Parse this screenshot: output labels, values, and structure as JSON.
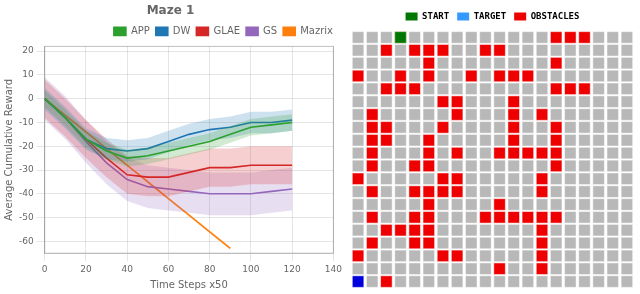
{
  "chart_data": [
    {
      "type": "line",
      "title": "Maze 1",
      "xlabel": "Time Steps x50",
      "ylabel": "Average Cumulative Reward",
      "xlim": [
        0,
        140
      ],
      "ylim": [
        -65,
        22
      ],
      "xticks": [
        0,
        20,
        40,
        60,
        80,
        100,
        120,
        140
      ],
      "yticks": [
        -60,
        -50,
        -40,
        -30,
        -20,
        -10,
        0,
        10,
        20
      ],
      "grid": true,
      "legend": "upper right",
      "x": [
        0,
        10,
        20,
        30,
        40,
        50,
        60,
        70,
        80,
        90,
        100,
        110,
        120
      ],
      "series": [
        {
          "name": "APP",
          "color": "#2ca02c",
          "std": 3.5,
          "values": [
            0,
            -8,
            -17,
            -22,
            -25,
            -24,
            -22,
            -20,
            -18,
            -15,
            -12,
            -11,
            -10
          ]
        },
        {
          "name": "DW",
          "color": "#1f77b4",
          "std": 4.5,
          "values": [
            0,
            -8,
            -17,
            -21,
            -22,
            -21,
            -18,
            -15,
            -13,
            -12,
            -10,
            -10,
            -9
          ]
        },
        {
          "name": "GLAE",
          "color": "#d62728",
          "std": 8,
          "values": [
            0,
            -8,
            -17,
            -25,
            -32,
            -33,
            -33,
            -31,
            -29,
            -29,
            -28,
            -28,
            -28
          ]
        },
        {
          "name": "GS",
          "color": "#9467bd",
          "std": 9,
          "values": [
            0,
            -8,
            -18,
            -27,
            -34,
            -37,
            -38,
            -39,
            -40,
            -40,
            -40,
            -39,
            -38
          ]
        },
        {
          "name": "Mazrix",
          "color": "#ff7f0e",
          "std": 0.5,
          "values": [
            0,
            -7,
            -14,
            -21,
            -28,
            -35,
            -42,
            -49,
            -56,
            -63,
            null,
            null,
            null
          ]
        }
      ]
    },
    {
      "type": "grid",
      "rows": 20,
      "cols": 20,
      "empty_color": "#b8b8b8",
      "tick_labels": false,
      "series": [
        {
          "name": "START",
          "color": "#007700",
          "legend_color": "#007700",
          "cells": [
            [
              0,
              3
            ]
          ]
        },
        {
          "name": "TARGET",
          "color": "#0000dd",
          "legend_color": "#3399ff",
          "cells": [
            [
              19,
              0
            ]
          ]
        },
        {
          "name": "OBSTACLES",
          "color": "#ee0000",
          "legend_color": "#ee0000",
          "cells": [
            [
              0,
              3
            ],
            [
              0,
              14
            ],
            [
              0,
              15
            ],
            [
              0,
              16
            ],
            [
              1,
              2
            ],
            [
              1,
              4
            ],
            [
              1,
              5
            ],
            [
              1,
              6
            ],
            [
              1,
              9
            ],
            [
              1,
              10
            ],
            [
              2,
              5
            ],
            [
              2,
              14
            ],
            [
              3,
              0
            ],
            [
              3,
              5
            ],
            [
              3,
              8
            ],
            [
              3,
              10
            ],
            [
              3,
              11
            ],
            [
              3,
              12
            ],
            [
              4,
              2
            ],
            [
              3,
              3
            ],
            [
              4,
              3
            ],
            [
              4,
              4
            ],
            [
              4,
              14
            ],
            [
              4,
              15
            ],
            [
              4,
              16
            ],
            [
              5,
              6
            ],
            [
              5,
              7
            ],
            [
              5,
              11
            ],
            [
              6,
              1
            ],
            [
              6,
              7
            ],
            [
              6,
              11
            ],
            [
              6,
              13
            ],
            [
              7,
              1
            ],
            [
              7,
              2
            ],
            [
              7,
              6
            ],
            [
              7,
              11
            ],
            [
              7,
              14
            ],
            [
              8,
              1
            ],
            [
              8,
              2
            ],
            [
              8,
              5
            ],
            [
              8,
              11
            ],
            [
              8,
              14
            ],
            [
              9,
              1
            ],
            [
              9,
              5
            ],
            [
              9,
              7
            ],
            [
              9,
              10
            ],
            [
              9,
              11
            ],
            [
              9,
              12
            ],
            [
              9,
              13
            ],
            [
              9,
              14
            ],
            [
              10,
              1
            ],
            [
              10,
              4
            ],
            [
              10,
              5
            ],
            [
              10,
              14
            ],
            [
              11,
              0
            ],
            [
              11,
              6
            ],
            [
              11,
              7
            ],
            [
              11,
              13
            ],
            [
              12,
              1
            ],
            [
              12,
              4
            ],
            [
              12,
              5
            ],
            [
              12,
              6
            ],
            [
              12,
              7
            ],
            [
              12,
              13
            ],
            [
              13,
              5
            ],
            [
              13,
              10
            ],
            [
              14,
              1
            ],
            [
              14,
              4
            ],
            [
              14,
              5
            ],
            [
              14,
              9
            ],
            [
              14,
              10
            ],
            [
              14,
              11
            ],
            [
              14,
              12
            ],
            [
              14,
              13
            ],
            [
              14,
              14
            ],
            [
              15,
              2
            ],
            [
              15,
              3
            ],
            [
              15,
              4
            ],
            [
              15,
              5
            ],
            [
              15,
              13
            ],
            [
              16,
              1
            ],
            [
              16,
              4
            ],
            [
              16,
              5
            ],
            [
              16,
              13
            ],
            [
              17,
              0
            ],
            [
              17,
              6
            ],
            [
              17,
              7
            ],
            [
              17,
              13
            ],
            [
              18,
              10
            ],
            [
              18,
              13
            ],
            [
              19,
              2
            ]
          ]
        }
      ]
    }
  ]
}
